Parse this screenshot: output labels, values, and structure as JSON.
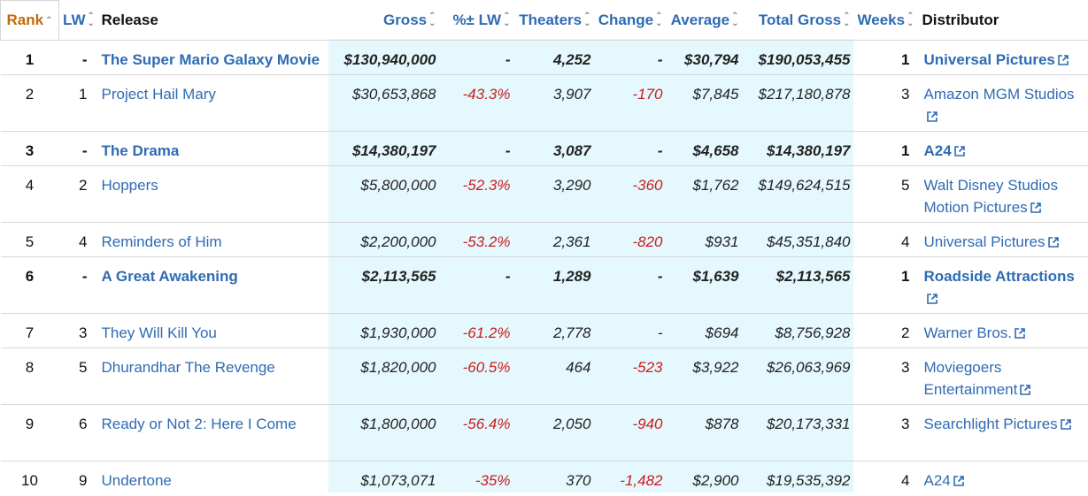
{
  "headers": {
    "rank": "Rank",
    "lw": "LW",
    "release": "Release",
    "gross": "Gross",
    "pct": "%± LW",
    "theaters": "Theaters",
    "change": "Change",
    "average": "Average",
    "total": "Total Gross",
    "weeks": "Weeks",
    "distributor": "Distributor"
  },
  "rows": [
    {
      "rank": "1",
      "lw": "-",
      "release": "The Super Mario Galaxy Movie",
      "gross": "$130,940,000",
      "pct": "-",
      "theaters": "4,252",
      "change": "-",
      "average": "$30,794",
      "total": "$190,053,455",
      "weeks": "1",
      "distributor": "Universal Pictures",
      "new": true,
      "tall": false
    },
    {
      "rank": "2",
      "lw": "1",
      "release": "Project Hail Mary",
      "gross": "$30,653,868",
      "pct": "-43.3%",
      "theaters": "3,907",
      "change": "-170",
      "average": "$7,845",
      "total": "$217,180,878",
      "weeks": "3",
      "distributor": "Amazon MGM Studios",
      "new": false,
      "tall": true
    },
    {
      "rank": "3",
      "lw": "-",
      "release": "The Drama",
      "gross": "$14,380,197",
      "pct": "-",
      "theaters": "3,087",
      "change": "-",
      "average": "$4,658",
      "total": "$14,380,197",
      "weeks": "1",
      "distributor": "A24",
      "new": true,
      "tall": false
    },
    {
      "rank": "4",
      "lw": "2",
      "release": "Hoppers",
      "gross": "$5,800,000",
      "pct": "-52.3%",
      "theaters": "3,290",
      "change": "-360",
      "average": "$1,762",
      "total": "$149,624,515",
      "weeks": "5",
      "distributor": "Walt Disney Studios Motion Pictures",
      "new": false,
      "tall": true
    },
    {
      "rank": "5",
      "lw": "4",
      "release": "Reminders of Him",
      "gross": "$2,200,000",
      "pct": "-53.2%",
      "theaters": "2,361",
      "change": "-820",
      "average": "$931",
      "total": "$45,351,840",
      "weeks": "4",
      "distributor": "Universal Pictures",
      "new": false,
      "tall": false
    },
    {
      "rank": "6",
      "lw": "-",
      "release": "A Great Awakening",
      "gross": "$2,113,565",
      "pct": "-",
      "theaters": "1,289",
      "change": "-",
      "average": "$1,639",
      "total": "$2,113,565",
      "weeks": "1",
      "distributor": "Roadside Attractions",
      "new": true,
      "tall": true
    },
    {
      "rank": "7",
      "lw": "3",
      "release": "They Will Kill You",
      "gross": "$1,930,000",
      "pct": "-61.2%",
      "theaters": "2,778",
      "change": "-",
      "average": "$694",
      "total": "$8,756,928",
      "weeks": "2",
      "distributor": "Warner Bros.",
      "new": false,
      "tall": false
    },
    {
      "rank": "8",
      "lw": "5",
      "release": "Dhurandhar The Revenge",
      "gross": "$1,820,000",
      "pct": "-60.5%",
      "theaters": "464",
      "change": "-523",
      "average": "$3,922",
      "total": "$26,063,969",
      "weeks": "3",
      "distributor": "Moviegoers Entertainment",
      "new": false,
      "tall": true
    },
    {
      "rank": "9",
      "lw": "6",
      "release": "Ready or Not 2: Here I Come",
      "gross": "$1,800,000",
      "pct": "-56.4%",
      "theaters": "2,050",
      "change": "-940",
      "average": "$878",
      "total": "$20,173,331",
      "weeks": "3",
      "distributor": "Searchlight Pictures",
      "new": false,
      "tall": true
    },
    {
      "rank": "10",
      "lw": "9",
      "release": "Undertone",
      "gross": "$1,073,071",
      "pct": "-35%",
      "theaters": "370",
      "change": "-1,482",
      "average": "$2,900",
      "total": "$19,535,392",
      "weeks": "4",
      "distributor": "A24",
      "new": false,
      "tall": false
    }
  ],
  "icons": {
    "sort": "sort-arrows-icon",
    "sort_asc": "sort-ascending-icon",
    "external": "external-link-icon"
  },
  "colors": {
    "link": "#2f6bb3",
    "negative": "#c81d1d",
    "highlight": "#e5f8fd",
    "rank_header": "#c26a08"
  }
}
